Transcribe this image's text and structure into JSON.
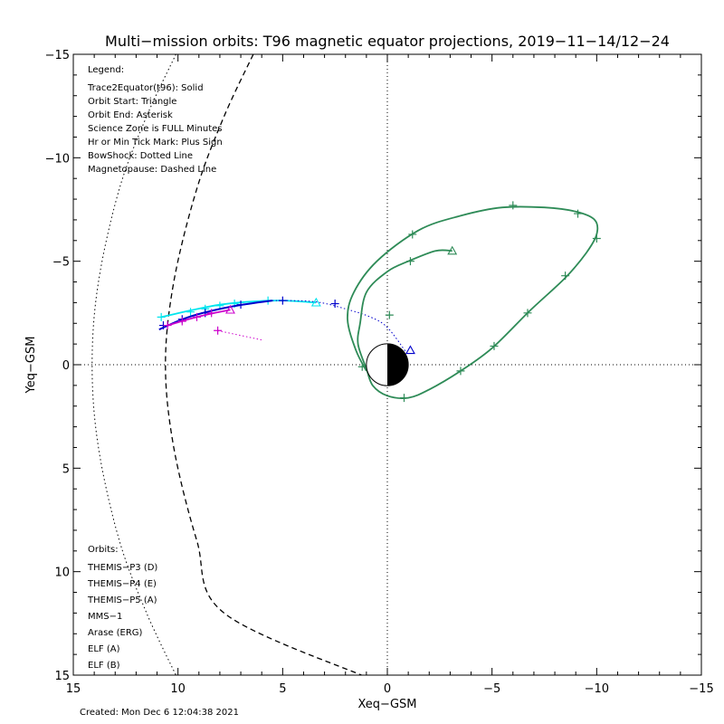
{
  "chart_data": {
    "type": "line",
    "title": "Multi−mission orbits: T96 magnetic equator projections, 2019−11−14/12−24",
    "xlabel": "Xeq−GSM",
    "ylabel": "Yeq−GSM",
    "xlim": [
      15,
      -15
    ],
    "ylim": [
      -15,
      15
    ],
    "x_ticks": [
      {
        "value": 15,
        "label": "15"
      },
      {
        "value": 10,
        "label": "10"
      },
      {
        "value": 5,
        "label": "5"
      },
      {
        "value": 0,
        "label": "0"
      },
      {
        "value": -5,
        "label": "−5"
      },
      {
        "value": -10,
        "label": "−10"
      },
      {
        "value": -15,
        "label": "−15"
      }
    ],
    "y_ticks": [
      {
        "value": -15,
        "label": "−15"
      },
      {
        "value": -10,
        "label": "−10"
      },
      {
        "value": -5,
        "label": "−5"
      },
      {
        "value": 0,
        "label": "0"
      },
      {
        "value": 5,
        "label": "5"
      },
      {
        "value": 10,
        "label": "10"
      },
      {
        "value": 15,
        "label": "15"
      }
    ],
    "legend_title": "Legend:",
    "legend_lines": [
      "Trace2Equator(t96): Solid",
      "Orbit Start: Triangle",
      "Orbit End: Asterisk",
      "Science Zone is FULL Minutes",
      "Hr or Min Tick Mark: Plus Sign",
      "BowShock: Dotted Line",
      "Magnetopause: Dashed Line"
    ],
    "orbits_title": "Orbits:",
    "orbit_labels": [
      {
        "label": "THEMIS−P3 (D)",
        "color": "#00e5ee"
      },
      {
        "label": "THEMIS−P4 (E)",
        "color": "#0000cc"
      },
      {
        "label": "THEMIS−P5 (A)",
        "color": "#cc00cc"
      },
      {
        "label": "MMS−1",
        "color": "#000000"
      },
      {
        "label": "Arase (ERG)",
        "color": "#2e8b57"
      },
      {
        "label": "ELF (A)",
        "color": "#3a7fd5"
      },
      {
        "label": "ELF (B)",
        "color": "#cc0000"
      }
    ],
    "created": "Created: Mon Dec  6 12:04:38 2021",
    "earth_radius": 1,
    "bowshock": [
      [
        10.1,
        -15
      ],
      [
        11.5,
        -12
      ],
      [
        12.8,
        -8.5
      ],
      [
        13.8,
        -4
      ],
      [
        14.1,
        0
      ],
      [
        13.8,
        4
      ],
      [
        12.8,
        8.5
      ],
      [
        11.5,
        12
      ],
      [
        10.1,
        15
      ]
    ],
    "magnetopause": [
      [
        6.4,
        -15
      ],
      [
        7.8,
        -12
      ],
      [
        9.1,
        -8.5
      ],
      [
        10.2,
        -4
      ],
      [
        10.6,
        0
      ],
      [
        10.2,
        4
      ],
      [
        9.1,
        8.5
      ],
      [
        7.8,
        12
      ],
      [
        1.0,
        15.1
      ]
    ],
    "series": [
      {
        "name": "THEMIS−P3 (D)",
        "color": "#00e5ee",
        "points": [
          [
            10.8,
            -2.3
          ],
          [
            9.5,
            -2.6
          ],
          [
            8,
            -2.9
          ],
          [
            6.5,
            -3.05
          ],
          [
            5,
            -3.1
          ],
          [
            3.4,
            -3.0
          ]
        ],
        "ticks": [
          [
            10.8,
            -2.3
          ],
          [
            9.4,
            -2.55
          ],
          [
            8.7,
            -2.7
          ],
          [
            8.0,
            -2.85
          ],
          [
            7.3,
            -2.95
          ],
          [
            5.7,
            -3.1
          ]
        ],
        "start": [
          3.4,
          -3.0
        ]
      },
      {
        "name": "THEMIS−P4 (E)",
        "color": "#0000cc",
        "points": [
          [
            10.9,
            -1.7
          ],
          [
            9.5,
            -2.3
          ],
          [
            7.5,
            -2.8
          ],
          [
            5.5,
            -3.1
          ],
          [
            3.5,
            -3.05
          ],
          [
            2,
            -2.7
          ],
          [
            0.8,
            -2.3
          ],
          [
            0,
            -1.8
          ],
          [
            -0.9,
            -0.6
          ]
        ],
        "solid_until": 3,
        "ticks": [
          [
            10.7,
            -1.9
          ],
          [
            9.8,
            -2.2
          ],
          [
            8.7,
            -2.5
          ],
          [
            7.0,
            -2.9
          ],
          [
            5.0,
            -3.1
          ],
          [
            2.5,
            -2.95
          ]
        ],
        "start": [
          -1.1,
          -0.7
        ]
      },
      {
        "name": "THEMIS−P5 (A)",
        "color": "#cc00cc",
        "points": [
          [
            10.5,
            -1.9
          ],
          [
            9.5,
            -2.2
          ],
          [
            8.5,
            -2.45
          ],
          [
            7.5,
            -2.65
          ]
        ],
        "ticks": [
          [
            10.5,
            -1.9
          ],
          [
            9.8,
            -2.1
          ],
          [
            9.1,
            -2.3
          ],
          [
            8.4,
            -2.5
          ]
        ],
        "start": [
          7.5,
          -2.65
        ],
        "points2": [
          [
            8.1,
            -1.65
          ],
          [
            6.0,
            -1.2
          ]
        ],
        "ticks2": [
          [
            8.1,
            -1.65
          ]
        ]
      },
      {
        "name": "Arase (ERG)",
        "color": "#2e8b57",
        "points": [
          [
            -3.1,
            -5.5
          ],
          [
            -2.3,
            -5.5
          ],
          [
            -1,
            -5
          ],
          [
            0,
            -4.5
          ],
          [
            1,
            -3.5
          ],
          [
            1.3,
            -2
          ],
          [
            1.4,
            -1
          ],
          [
            1.0,
            0.2
          ],
          [
            0.7,
            1
          ],
          [
            0,
            1.5
          ],
          [
            -1,
            1.6
          ],
          [
            -2,
            1.2
          ],
          [
            -3.5,
            0.3
          ],
          [
            -5,
            -0.8
          ],
          [
            -6.8,
            -2.6
          ],
          [
            -8.5,
            -4.2
          ],
          [
            -9.5,
            -5.4
          ],
          [
            -10,
            -6.3
          ],
          [
            -9.9,
            -7.0
          ],
          [
            -9,
            -7.4
          ],
          [
            -7.5,
            -7.6
          ],
          [
            -5.5,
            -7.6
          ],
          [
            -3.5,
            -7.2
          ],
          [
            -1.5,
            -6.5
          ],
          [
            0.5,
            -5
          ],
          [
            1.6,
            -3.5
          ],
          [
            1.9,
            -2.2
          ],
          [
            1.5,
            -0.7
          ],
          [
            1.0,
            0.3
          ]
        ],
        "ticks": [
          [
            -1.1,
            -5.0
          ],
          [
            -0.1,
            -2.4
          ],
          [
            1.2,
            0.1
          ],
          [
            -0.8,
            1.6
          ],
          [
            -3.5,
            0.3
          ],
          [
            -5.1,
            -0.9
          ],
          [
            -6.7,
            -2.5
          ],
          [
            -8.5,
            -4.3
          ],
          [
            -10,
            -6.1
          ],
          [
            -9.1,
            -7.3
          ],
          [
            -6.0,
            -7.7
          ],
          [
            -1.2,
            -6.3
          ]
        ],
        "start": [
          -3.1,
          -5.5
        ]
      }
    ]
  }
}
